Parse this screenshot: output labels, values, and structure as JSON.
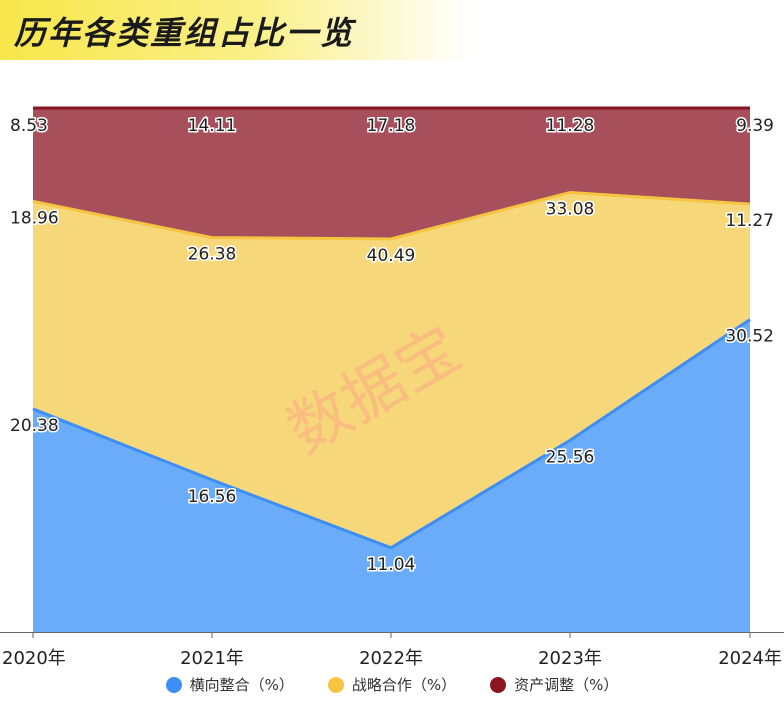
{
  "title": "历年各类重组占比一览",
  "watermark": "数据宝",
  "chart_data": {
    "type": "area",
    "stacked": true,
    "categories": [
      "2020年",
      "2021年",
      "2022年",
      "2023年",
      "2024年"
    ],
    "series": [
      {
        "name": "横向整合（%）",
        "color": "#6aacfa",
        "line_color": "#3e8ef7",
        "values": [
          20.38,
          16.56,
          11.04,
          25.56,
          30.52
        ]
      },
      {
        "name": "战略合作（%）",
        "color": "#f6d87a",
        "line_color": "#f5c542",
        "values": [
          18.96,
          26.38,
          40.49,
          33.08,
          11.27
        ]
      },
      {
        "name": "资产调整（%）",
        "color": "#a84f5c",
        "line_color": "#8b1520",
        "values": [
          8.53,
          14.11,
          17.18,
          11.28,
          9.39
        ]
      }
    ],
    "legend_position": "bottom",
    "grid": false
  }
}
